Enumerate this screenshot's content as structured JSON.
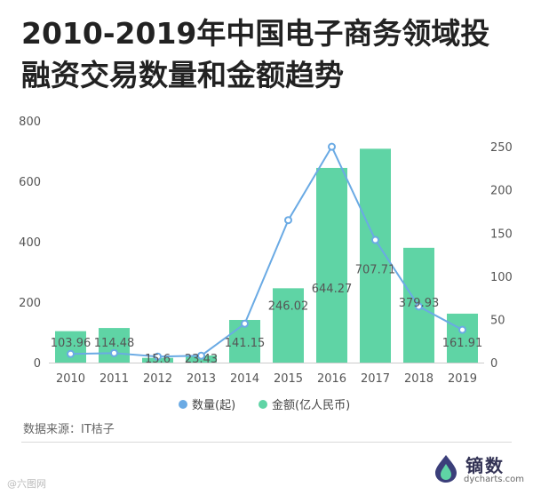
{
  "title": "2010-2019年中国电子商务领域投融资交易数量和金额趋势",
  "source": "数据来源：IT桔子",
  "brand": {
    "name": "镝数",
    "url": "dycharts.com"
  },
  "watermark": "@六图网",
  "colors": {
    "bar": "#5fd4a5",
    "line": "#6aaae4",
    "axis": "#cccccc"
  },
  "chart_data": {
    "type": "bar+line",
    "categories": [
      "2010",
      "2011",
      "2012",
      "2013",
      "2014",
      "2015",
      "2016",
      "2017",
      "2018",
      "2019"
    ],
    "series": [
      {
        "name": "数量(起)",
        "type": "line",
        "axis": "right",
        "values": [
          10,
          11,
          7,
          8,
          45,
          165,
          250,
          142,
          65,
          38
        ]
      },
      {
        "name": "金额(亿人民币)",
        "type": "bar",
        "axis": "left",
        "values": [
          103.96,
          114.48,
          15.6,
          23.43,
          141.15,
          246.02,
          644.27,
          707.71,
          379.93,
          161.91
        ],
        "labels": [
          "103.96",
          "114.48",
          "15.6",
          "23.43",
          "141.15",
          "246.02",
          "644.27",
          "707.71",
          "379.93",
          "161.91"
        ]
      }
    ],
    "left_axis": {
      "ticks": [
        "0",
        "200",
        "400",
        "600",
        "800"
      ],
      "range": [
        0,
        800
      ]
    },
    "right_axis": {
      "ticks": [
        "0",
        "50",
        "100",
        "150",
        "200",
        "250"
      ],
      "range": [
        0,
        280
      ]
    },
    "grid": false,
    "legend_position": "bottom"
  }
}
